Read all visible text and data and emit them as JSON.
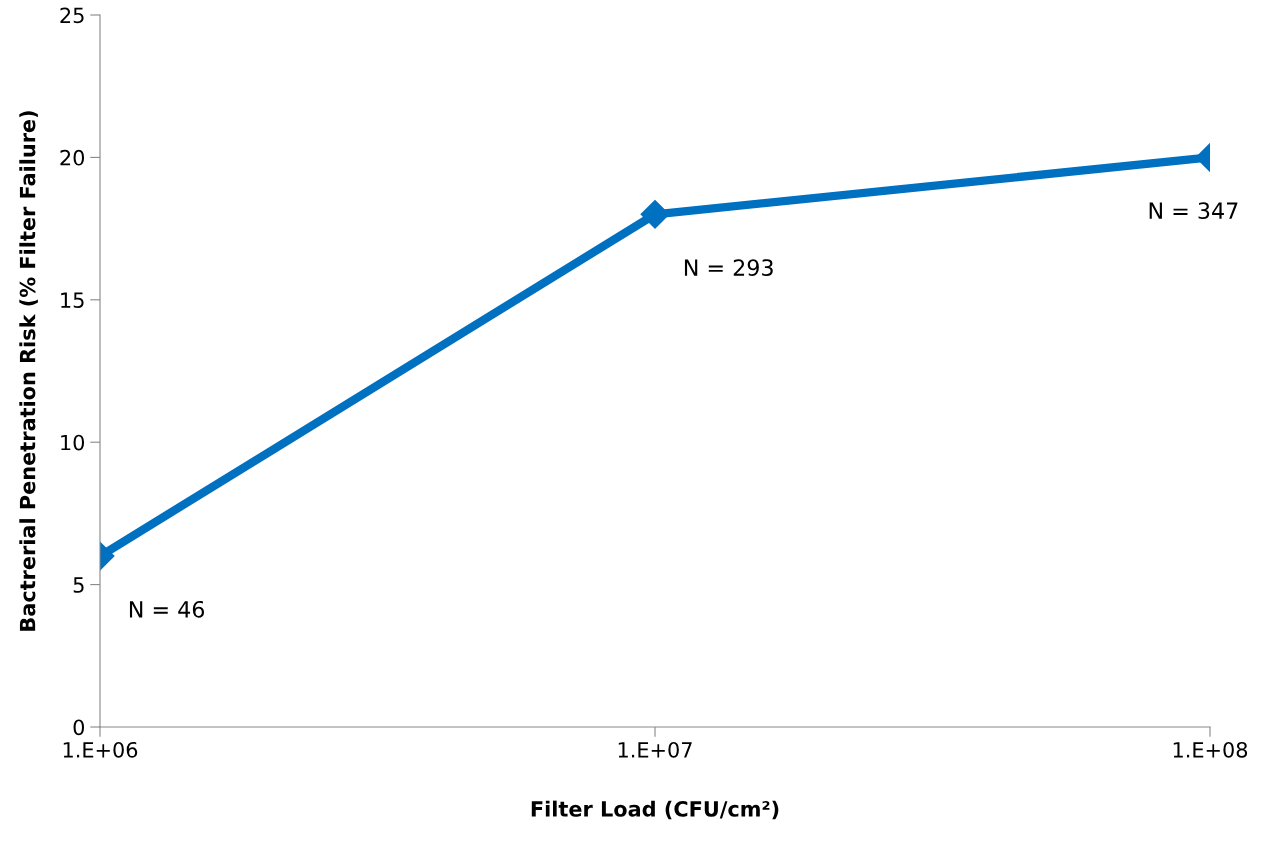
{
  "chart_data": {
    "type": "line",
    "xlabel": "Filter Load (CFU/cm²)",
    "ylabel": "Bactrerial Penetration Risk (% Filter Failure)",
    "categories": [
      "1.E+06",
      "1.E+07",
      "1.E+08"
    ],
    "series": [
      {
        "color": "#0070c0",
        "values": [
          6,
          18,
          20
        ]
      }
    ],
    "ylim": [
      0,
      25
    ],
    "yticks": [
      0,
      5,
      10,
      15,
      20,
      25
    ],
    "grid": false,
    "legend": false,
    "marker": "diamond",
    "line_style": "solid",
    "annotations": [
      {
        "text": "N = 46",
        "x": "1.E+06",
        "y": 6
      },
      {
        "text": "N = 293",
        "x": "1.E+07",
        "y": 18
      },
      {
        "text": "N = 347",
        "x": "1.E+08",
        "y": 20
      }
    ]
  }
}
